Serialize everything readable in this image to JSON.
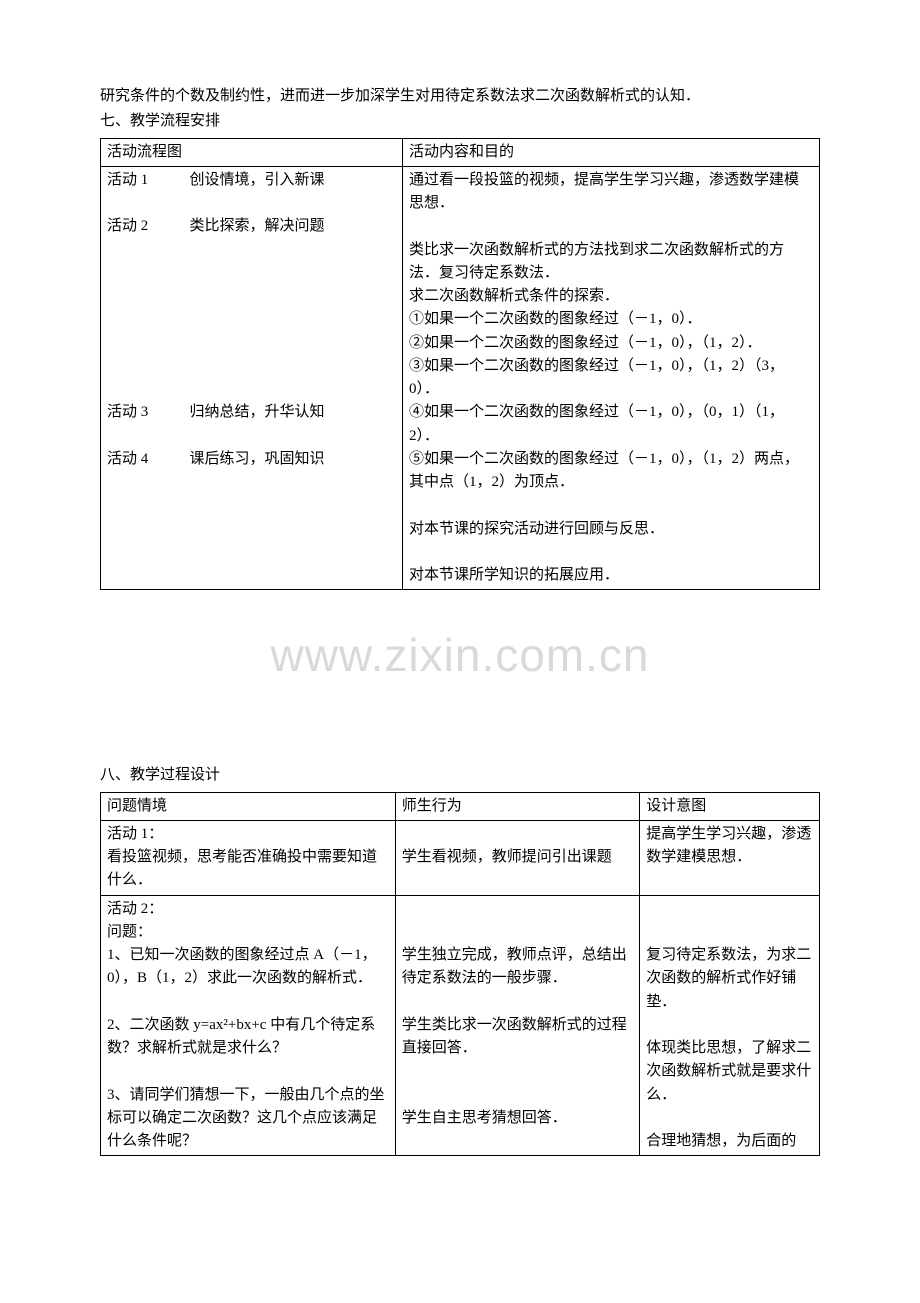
{
  "top_paragraph": "研究条件的个数及制约性，进而进一步加深学生对用待定系数法求二次函数解析式的认知．",
  "section7_heading": "七、教学流程安排",
  "table1": {
    "col_widths": [
      "42%",
      "58%"
    ],
    "header": {
      "c1": "活动流程图",
      "c2": "活动内容和目的"
    },
    "row1": {
      "c1_label": "活动 1",
      "c1_text": "创设情境，引入新课",
      "c2_lines": [
        "通过看一段投篮的视频，提高学生学习兴趣，渗透数学建模思想．",
        ""
      ]
    },
    "row2": {
      "c1_label": "活动 2",
      "c1_text": "类比探索，解决问题",
      "c2_lines": [
        "类比求一次函数解析式的方法找到求二次函数解析式的方法．复习待定系数法．",
        "求二次函数解析式条件的探索．",
        "①如果一个二次函数的图象经过（－1，0）．",
        "②如果一个二次函数的图象经过（－1，0），（1，2）．",
        "③如果一个二次函数的图象经过（－1，0），（1，2）（3，0）．",
        "④如果一个二次函数的图象经过（－1，0），（0，1）（1，2）．",
        "⑤如果一个二次函数的图象经过（－1，0），（1，2）两点，其中点（1，2）为顶点．",
        ""
      ]
    },
    "row3": {
      "c1_label": "活动 3",
      "c1_text": "归纳总结，升华认知",
      "c2_lines": [
        "对本节课的探究活动进行回顾与反思．",
        ""
      ]
    },
    "row4": {
      "c1_label": "活动 4",
      "c1_text": "课后练习，巩固知识",
      "c2_lines": [
        "对本节课所学知识的拓展应用．"
      ]
    }
  },
  "watermark_text": "www.zixin.com.cn",
  "section8_heading": "八、教学过程设计",
  "table2": {
    "col_widths": [
      "41%",
      "34%",
      "25%"
    ],
    "header": {
      "c1": "问题情境",
      "c2": "师生行为",
      "c3": "设计意图"
    },
    "row1": {
      "c1_lines": [
        "活动 1：",
        "看投篮视频，思考能否准确投中需要知道什么．"
      ],
      "c2_lines": [
        "",
        "学生看视频，教师提问引出课题"
      ],
      "c3_lines": [
        "提高学生学习兴趣，渗透数学建模思想．"
      ]
    },
    "row2": {
      "c1_lines": [
        "活动 2：",
        "问题：",
        "1、已知一次函数的图象经过点 A（－1，0），B（1，2）求此一次函数的解析式．",
        "",
        "2、二次函数 y=ax²+bx+c 中有几个待定系数？求解析式就是求什么？",
        "",
        "3、请同学们猜想一下，一般由几个点的坐标可以确定二次函数？这几个点应该满足什么条件呢？"
      ],
      "c2_lines": [
        "",
        "",
        "学生独立完成，教师点评，总结出待定系数法的一般步骤．",
        "",
        "学生类比求一次函数解析式的过程直接回答．",
        "",
        "",
        "学生自主思考猜想回答．"
      ],
      "c3_lines": [
        "",
        "",
        "复习待定系数法，为求二次函数的解析式作好铺垫．",
        "",
        "体现类比思想，了解求二次函数解析式就是要求什么．",
        "",
        "合理地猜想，为后面的"
      ]
    }
  }
}
